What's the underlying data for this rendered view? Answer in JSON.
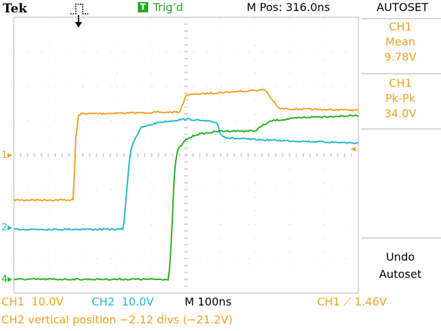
{
  "header": {
    "brand": "Tek",
    "trigger_icon": "trigger-pulse-icon",
    "trigger_badge": "T",
    "trigger_status": "Trig’d",
    "m_pos": "M Pos: 316.0ns"
  },
  "side_menu": {
    "title": "AUTOSET",
    "measurements": [
      {
        "source": "CH1",
        "type": "Mean",
        "value": "9.78V"
      },
      {
        "source": "CH1",
        "type": "Pk-Pk",
        "value": "34.0V"
      }
    ],
    "undo": {
      "line1": "Undo",
      "line2": "Autoset"
    }
  },
  "status_bar": {
    "ch1_label": "CH1",
    "ch1_scale": "10.0V",
    "ch2_label": "CH2",
    "ch2_scale": "10.0V",
    "timebase": "M 100ns",
    "trigger_source": "CH1",
    "trigger_level": "1.46V",
    "message": "CH2 vertical position −2.12 divs (−21.2V)"
  },
  "channel_markers": {
    "ch1": "1",
    "ch2": "2",
    "ch4": "4"
  },
  "colors": {
    "ch1": "#f0a020",
    "ch2": "#20b8c8",
    "ch4": "#20b020",
    "grid": "#b4b4b4",
    "trig": "#22aa22"
  },
  "graticule": {
    "divisions_x": 10,
    "divisions_y": 8
  },
  "chart_data": {
    "type": "line",
    "xunit": "divisions",
    "yunit": "divisions",
    "xlim": [
      0,
      10
    ],
    "ylim": [
      -4,
      4
    ],
    "grid": true,
    "series": [
      {
        "name": "CH1",
        "x": [
          0,
          1.73,
          1.8,
          1.88,
          1.95,
          4.8,
          4.9,
          5.0,
          7.3,
          7.5,
          7.7,
          10
        ],
        "y": [
          -1.3,
          -1.3,
          0.5,
          1.15,
          1.2,
          1.25,
          1.45,
          1.75,
          1.9,
          1.6,
          1.35,
          1.3
        ]
      },
      {
        "name": "CH2",
        "x": [
          0,
          3.18,
          3.3,
          3.38,
          3.5,
          3.7,
          4.2,
          5.0,
          5.9,
          6.0,
          6.2,
          7.0,
          10
        ],
        "y": [
          -2.15,
          -2.15,
          -0.8,
          0.1,
          0.45,
          0.8,
          0.95,
          1.05,
          0.95,
          0.6,
          0.5,
          0.45,
          0.35
        ]
      },
      {
        "name": "CH4",
        "x": [
          0,
          4.5,
          4.58,
          4.66,
          4.75,
          5.0,
          5.3,
          6.0,
          7.0,
          7.2,
          7.5,
          8.5,
          10
        ],
        "y": [
          -3.6,
          -3.6,
          -2.4,
          -0.5,
          0.15,
          0.45,
          0.6,
          0.7,
          0.7,
          0.85,
          1.0,
          1.1,
          1.15
        ]
      }
    ]
  }
}
